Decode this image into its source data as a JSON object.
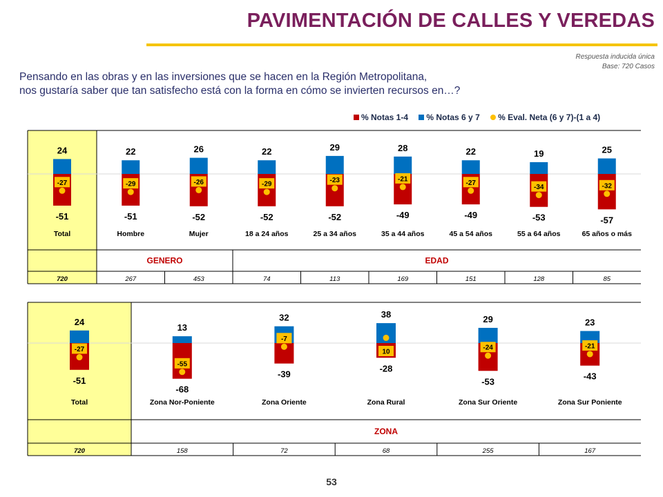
{
  "header": {
    "title": "PAVIMENTACIÓN DE CALLES Y VEREDAS",
    "meta_line1": "Respuesta inducida única",
    "meta_line2": "Base: 720 Casos"
  },
  "question": {
    "line1": "Pensando en las obras y en las inversiones que se hacen en la Región Metropolitana,",
    "line2": "nos gustaría saber que tan satisfecho está con la forma en cómo se invierten recursos en…?"
  },
  "legend": {
    "neg": "% Notas 1-4",
    "pos": "% Notas 6 y 7",
    "net": "% Eval. Neta (6 y 7)-(1 a 4)"
  },
  "colors": {
    "neg": "#c00000",
    "pos": "#0070c0",
    "net": "#ffc000",
    "total_bg": "#ffff99",
    "group_label": "#c00000",
    "title": "#7a1f5c",
    "rule": "#f5c400"
  },
  "page_number": "53",
  "chart_data": [
    {
      "type": "bar",
      "categories": [
        "Total",
        "Hombre",
        "Mujer",
        "18 a 24 años",
        "25 a 34 años",
        "35 a 44 años",
        "45 a 54 años",
        "55 a 64 años",
        "65 años o más"
      ],
      "series": [
        {
          "name": "% Notas 1-4",
          "values": [
            -51,
            -51,
            -52,
            -52,
            -52,
            -49,
            -49,
            -53,
            -57
          ]
        },
        {
          "name": "% Notas 6 y 7",
          "values": [
            24,
            22,
            26,
            22,
            29,
            28,
            22,
            19,
            25
          ]
        },
        {
          "name": "% Eval. Neta (6 y 7)-(1 a 4)",
          "values": [
            -27,
            -29,
            -26,
            -29,
            -23,
            -21,
            -27,
            -34,
            -32
          ]
        }
      ],
      "groups": [
        {
          "label": "GENERO",
          "categories": [
            "Hombre",
            "Mujer"
          ]
        },
        {
          "label": "EDAD",
          "categories": [
            "18 a 24 años",
            "25 a 34 años",
            "35 a 44 años",
            "45 a 54 años",
            "55 a 64 años",
            "65 años o más"
          ]
        }
      ],
      "bases": [
        "720",
        "267",
        "453",
        "74",
        "113",
        "169",
        "151",
        "128",
        "85"
      ]
    },
    {
      "type": "bar",
      "categories": [
        "Total",
        "Zona Nor-Poniente",
        "Zona Oriente",
        "Zona Rural",
        "Zona Sur Oriente",
        "Zona Sur Poniente"
      ],
      "series": [
        {
          "name": "% Notas 1-4",
          "values": [
            -51,
            -68,
            -39,
            -28,
            -53,
            -43
          ]
        },
        {
          "name": "% Notas 6 y 7",
          "values": [
            24,
            13,
            32,
            38,
            29,
            23
          ]
        },
        {
          "name": "% Eval. Neta (6 y 7)-(1 a 4)",
          "values": [
            -27,
            -55,
            -7,
            10,
            -24,
            -21
          ]
        }
      ],
      "groups": [
        {
          "label": "ZONA",
          "categories": [
            "Zona Nor-Poniente",
            "Zona Oriente",
            "Zona Rural",
            "Zona Sur Oriente",
            "Zona Sur Poniente"
          ]
        }
      ],
      "bases": [
        "720",
        "158",
        "72",
        "68",
        "255",
        "167"
      ]
    }
  ]
}
